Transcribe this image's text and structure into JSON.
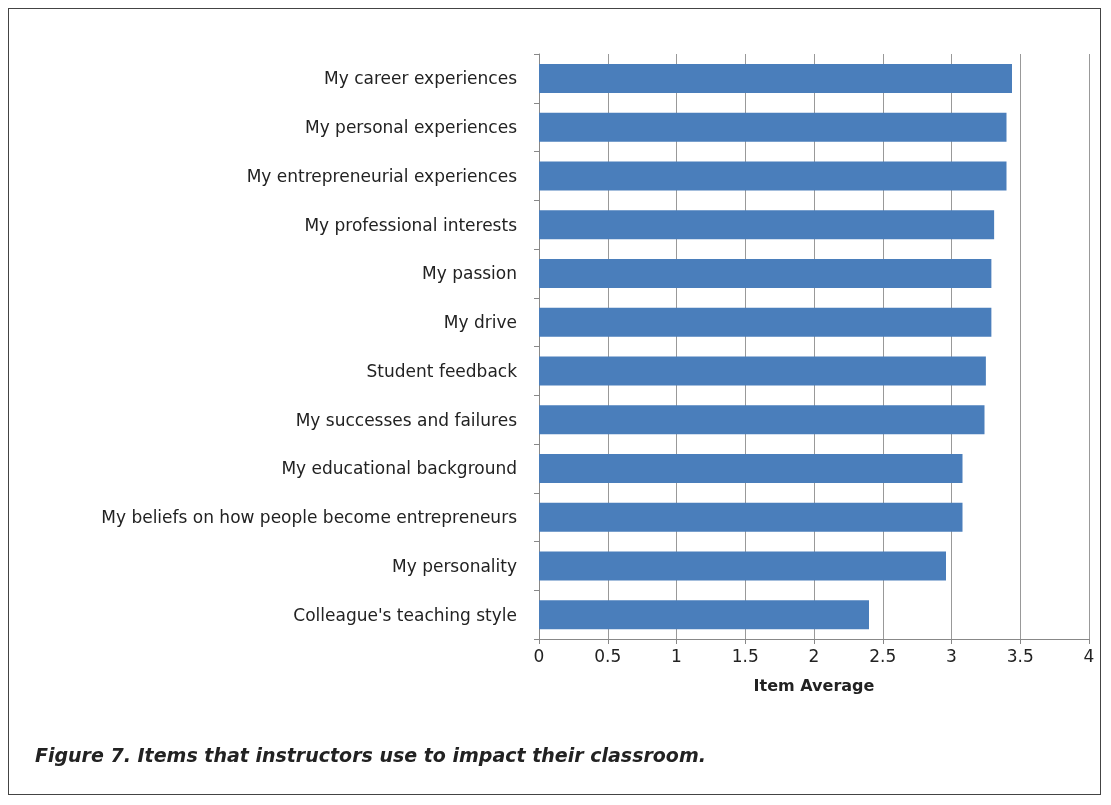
{
  "chart_data": {
    "type": "bar",
    "orientation": "horizontal",
    "xlabel": "Item Average",
    "categories": [
      "My career experiences",
      "My personal experiences",
      "My entrepreneurial experiences",
      "My professional interests",
      "My passion",
      "My drive",
      "Student feedback",
      "My successes and failures",
      "My educational background",
      "My beliefs on how people become entrepreneurs",
      "My personality",
      "Colleague's teaching style"
    ],
    "values": [
      3.44,
      3.4,
      3.4,
      3.31,
      3.29,
      3.29,
      3.25,
      3.24,
      3.08,
      3.08,
      2.96,
      2.4
    ],
    "color": "#4a7ebb",
    "xlim": [
      0,
      4
    ],
    "xticks": [
      0,
      0.5,
      1,
      1.5,
      2,
      2.5,
      3,
      3.5,
      4
    ],
    "grid": "x",
    "annotations": [
      "Figure 7. Items that instructors use to impact their classroom."
    ]
  }
}
